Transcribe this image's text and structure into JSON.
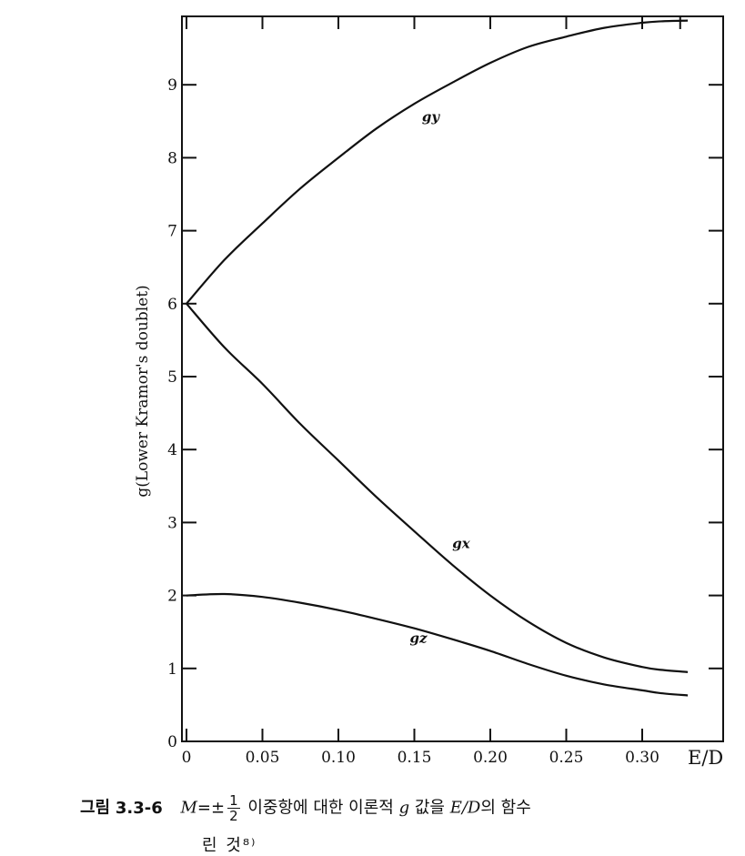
{
  "chart_data": {
    "type": "line",
    "ylabel": "g(Lower Kramor's doublet)",
    "xlabel": "E/D",
    "xlim": [
      0,
      0.35
    ],
    "ylim": [
      0,
      10
    ],
    "xticks": [
      0,
      0.05,
      0.1,
      0.15,
      0.2,
      0.25,
      0.3
    ],
    "xtick_labels": [
      "0",
      "0.05",
      "0.10",
      "0.15",
      "0.20",
      "0.25",
      "0.30"
    ],
    "yticks": [
      0,
      1,
      2,
      3,
      4,
      5,
      6,
      7,
      8,
      9
    ],
    "ytick_labels": [
      "0",
      "1",
      "2",
      "3",
      "4",
      "5",
      "6",
      "7",
      "8",
      "9"
    ],
    "grid": false,
    "series": [
      {
        "name": "g_y",
        "label_text": "gy",
        "label_at": [
          0.155,
          8.5
        ],
        "x": [
          0,
          0.025,
          0.05,
          0.075,
          0.1,
          0.125,
          0.15,
          0.175,
          0.2,
          0.225,
          0.25,
          0.275,
          0.3,
          0.3125,
          0.33
        ],
        "y": [
          6.0,
          6.6,
          7.1,
          7.58,
          8.0,
          8.4,
          8.74,
          9.03,
          9.3,
          9.52,
          9.66,
          9.78,
          9.85,
          9.87,
          9.88
        ]
      },
      {
        "name": "g_x",
        "label_text": "gx",
        "label_at": [
          0.175,
          2.65
        ],
        "x": [
          0,
          0.025,
          0.05,
          0.075,
          0.1,
          0.125,
          0.15,
          0.175,
          0.2,
          0.225,
          0.25,
          0.275,
          0.3,
          0.3125,
          0.33
        ],
        "y": [
          6.0,
          5.4,
          4.9,
          4.35,
          3.85,
          3.35,
          2.88,
          2.42,
          2.0,
          1.64,
          1.35,
          1.15,
          1.02,
          0.98,
          0.95
        ]
      },
      {
        "name": "g_z",
        "label_text": "gz",
        "label_at": [
          0.147,
          1.35
        ],
        "x": [
          0,
          0.025,
          0.05,
          0.075,
          0.1,
          0.125,
          0.15,
          0.175,
          0.2,
          0.225,
          0.25,
          0.275,
          0.3,
          0.3125,
          0.33
        ],
        "y": [
          2.0,
          2.02,
          1.98,
          1.9,
          1.8,
          1.68,
          1.55,
          1.4,
          1.24,
          1.06,
          0.9,
          0.78,
          0.7,
          0.66,
          0.63
        ]
      }
    ]
  },
  "caption": {
    "label": "그림",
    "number": "3.3-6",
    "m_var": "M",
    "m_eq": "=±",
    "frac_num": "1",
    "frac_den": "2",
    "text1": "이중항에 대한 이론적",
    "g_var": "g",
    "text2": "값을",
    "ed_var": "E/D",
    "text3": "의 함수",
    "line2": "린 것⁸⁾"
  }
}
